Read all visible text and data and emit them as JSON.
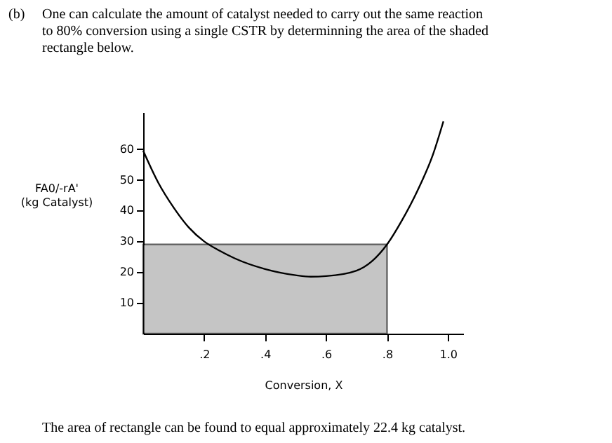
{
  "chart_data": {
    "type": "line",
    "title": "One can calculate the amount of catalyst needed to carry out the same reaction to 80% conversion using a single CSTR by determinning the area of the shaded rectangle below.",
    "xlabel": "Conversion,  X",
    "ylabel": "FA0/-rA'\n(kg  Catalyst)",
    "annotations": [
      "(b)",
      "The area of rectangle can be found to equal approximately 22.4 kg catalyst."
    ],
    "series": [
      {
        "type": "area",
        "color": "#a0a0a0",
        "x": [
          0,
          0.8
        ],
        "values": [
          29,
          29
        ]
      },
      {
        "color": "#000000",
        "x": [
          0,
          0.05,
          0.1,
          0.15,
          0.2,
          0.25,
          0.3,
          0.4,
          0.5,
          0.55,
          0.6,
          0.7,
          0.75,
          0.8,
          0.85,
          0.9,
          0.95,
          0.985
        ],
        "values": [
          59.5,
          49,
          41,
          34.5,
          30,
          27,
          24.5,
          21,
          19,
          18.5,
          18.7,
          20.5,
          23.5,
          29,
          37,
          46.5,
          58,
          69
        ]
      }
    ],
    "xlim": [
      0,
      1.05
    ],
    "ylim": [
      0,
      72
    ],
    "xticks": [
      {
        "value": 0.2,
        "label": ".2"
      },
      {
        "value": 0.4,
        "label": ".4"
      },
      {
        "value": 0.6,
        "label": ".6"
      },
      {
        "value": 0.8,
        "label": ".8"
      },
      {
        "value": 1.0,
        "label": "1.0"
      }
    ],
    "yticks": [
      10,
      20,
      30,
      40,
      50,
      60
    ],
    "grid": false,
    "legend": false,
    "marker": "none",
    "line_style": "solid"
  }
}
